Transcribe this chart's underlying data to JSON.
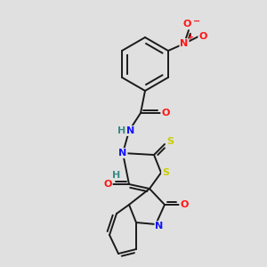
{
  "background_color": "#e0e0e0",
  "colors": {
    "bond": "#1a1a1a",
    "C": "#000000",
    "N": "#1414ff",
    "O": "#ff1414",
    "S": "#cccc00",
    "H": "#3a8a8a"
  },
  "fig_width": 3.0,
  "fig_height": 3.0,
  "dpi": 100
}
